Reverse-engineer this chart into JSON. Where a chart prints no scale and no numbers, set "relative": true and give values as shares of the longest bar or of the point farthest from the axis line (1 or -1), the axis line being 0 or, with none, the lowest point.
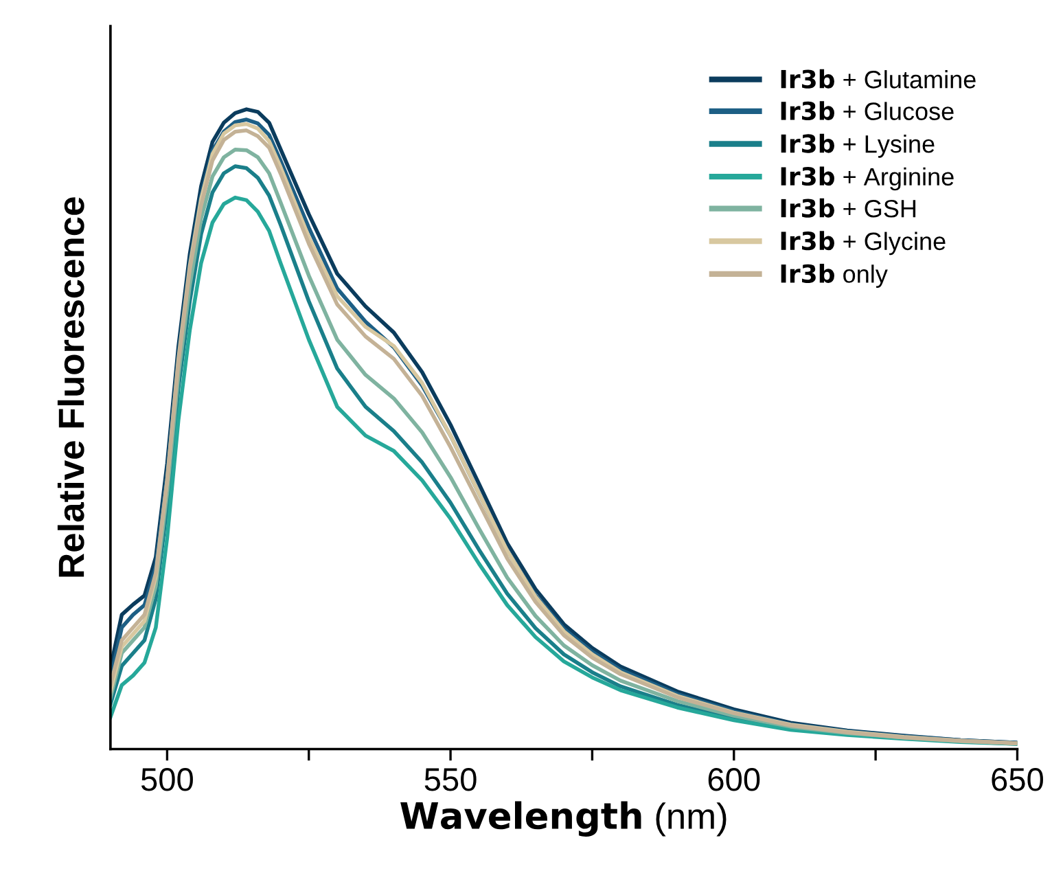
{
  "chart_data": {
    "type": "line",
    "relative": true,
    "xlabel": "Wavelength (nm)",
    "ylabel": "Relative Fluorescence",
    "xlim": [
      490,
      650
    ],
    "xticks": [
      500,
      {
        "value": 525,
        "label": null
      },
      550,
      {
        "value": 575,
        "label": null
      },
      600,
      {
        "value": 625,
        "label": null
      },
      650
    ],
    "x": [
      490,
      492,
      494,
      496,
      498,
      500,
      502,
      504,
      506,
      508,
      510,
      512,
      514,
      516,
      518,
      520,
      525,
      530,
      535,
      540,
      545,
      550,
      555,
      560,
      565,
      570,
      575,
      580,
      590,
      600,
      610,
      620,
      630,
      640,
      650
    ],
    "legend": "top right",
    "grid": false,
    "marker": "none",
    "line_style": "solid",
    "series": [
      {
        "name": "Ir3b + Glutamine",
        "color": "#0b3c5d",
        "values": [
          0.127,
          0.21,
          0.226,
          0.24,
          0.3,
          0.446,
          0.63,
          0.774,
          0.88,
          0.949,
          0.979,
          0.994,
          1.0,
          0.996,
          0.979,
          0.938,
          0.836,
          0.743,
          0.692,
          0.651,
          0.589,
          0.507,
          0.415,
          0.322,
          0.25,
          0.195,
          0.158,
          0.129,
          0.09,
          0.062,
          0.041,
          0.029,
          0.021,
          0.014,
          0.01
        ]
      },
      {
        "name": "Ir3b + Glucose",
        "color": "#1d5f85",
        "values": [
          0.11,
          0.19,
          0.21,
          0.225,
          0.285,
          0.43,
          0.615,
          0.76,
          0.865,
          0.935,
          0.965,
          0.98,
          0.984,
          0.978,
          0.96,
          0.92,
          0.815,
          0.72,
          0.668,
          0.628,
          0.568,
          0.49,
          0.4,
          0.31,
          0.24,
          0.188,
          0.152,
          0.124,
          0.086,
          0.059,
          0.039,
          0.028,
          0.02,
          0.014,
          0.01
        ]
      },
      {
        "name": "Ir3b + Lysine",
        "color": "#1a7f8a",
        "values": [
          0.07,
          0.13,
          0.15,
          0.17,
          0.235,
          0.38,
          0.565,
          0.7,
          0.805,
          0.87,
          0.9,
          0.911,
          0.908,
          0.893,
          0.865,
          0.82,
          0.7,
          0.595,
          0.535,
          0.497,
          0.448,
          0.385,
          0.312,
          0.243,
          0.189,
          0.148,
          0.12,
          0.098,
          0.069,
          0.048,
          0.032,
          0.023,
          0.017,
          0.012,
          0.008
        ]
      },
      {
        "name": "Ir3b + Arginine",
        "color": "#26a89a",
        "values": [
          0.05,
          0.1,
          0.115,
          0.135,
          0.19,
          0.33,
          0.515,
          0.655,
          0.76,
          0.823,
          0.852,
          0.862,
          0.858,
          0.84,
          0.81,
          0.76,
          0.64,
          0.535,
          0.49,
          0.466,
          0.42,
          0.36,
          0.29,
          0.225,
          0.175,
          0.137,
          0.112,
          0.092,
          0.065,
          0.045,
          0.03,
          0.022,
          0.016,
          0.011,
          0.008
        ]
      },
      {
        "name": "Ir3b + GSH",
        "color": "#7fb3a0",
        "values": [
          0.08,
          0.15,
          0.17,
          0.19,
          0.255,
          0.4,
          0.585,
          0.725,
          0.83,
          0.895,
          0.925,
          0.937,
          0.936,
          0.925,
          0.9,
          0.855,
          0.74,
          0.64,
          0.585,
          0.548,
          0.495,
          0.425,
          0.345,
          0.268,
          0.208,
          0.162,
          0.131,
          0.107,
          0.075,
          0.052,
          0.035,
          0.025,
          0.018,
          0.012,
          0.009
        ]
      },
      {
        "name": "Ir3b + Glycine",
        "color": "#d8c8a0",
        "values": [
          0.09,
          0.16,
          0.18,
          0.2,
          0.27,
          0.42,
          0.61,
          0.755,
          0.86,
          0.93,
          0.962,
          0.975,
          0.977,
          0.97,
          0.95,
          0.91,
          0.8,
          0.708,
          0.66,
          0.63,
          0.572,
          0.49,
          0.4,
          0.31,
          0.238,
          0.184,
          0.148,
          0.12,
          0.083,
          0.057,
          0.038,
          0.027,
          0.019,
          0.013,
          0.009
        ]
      },
      {
        "name": "Ir3b only",
        "color": "#c4b296",
        "values": [
          0.1,
          0.17,
          0.19,
          0.21,
          0.275,
          0.42,
          0.605,
          0.75,
          0.85,
          0.92,
          0.952,
          0.965,
          0.967,
          0.958,
          0.94,
          0.9,
          0.79,
          0.695,
          0.645,
          0.61,
          0.552,
          0.472,
          0.385,
          0.298,
          0.23,
          0.178,
          0.143,
          0.117,
          0.081,
          0.056,
          0.037,
          0.026,
          0.018,
          0.013,
          0.009
        ]
      }
    ]
  }
}
